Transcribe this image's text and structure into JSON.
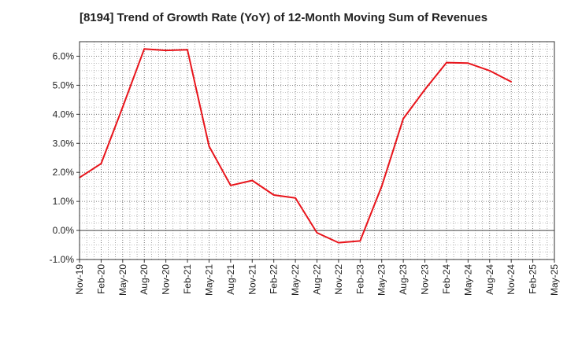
{
  "chart_data": {
    "type": "line",
    "title": "[8194]  Trend of Growth Rate (YoY) of 12-Month Moving Sum of Revenues",
    "xlabel": "",
    "ylabel": "",
    "ylim": [
      -1.0,
      6.5
    ],
    "y_ticks": [
      -1.0,
      0.0,
      1.0,
      2.0,
      3.0,
      4.0,
      5.0,
      6.0
    ],
    "y_tick_labels": [
      "-1.0%",
      "0.0%",
      "1.0%",
      "2.0%",
      "3.0%",
      "4.0%",
      "5.0%",
      "6.0%"
    ],
    "x_tick_labels": [
      "Nov-19",
      "Feb-20",
      "May-20",
      "Aug-20",
      "Nov-20",
      "Feb-21",
      "May-21",
      "Aug-21",
      "Nov-21",
      "Feb-22",
      "May-22",
      "Aug-22",
      "Nov-22",
      "Feb-23",
      "May-23",
      "Aug-23",
      "Nov-23",
      "Feb-24",
      "May-24",
      "Aug-24",
      "Nov-24",
      "Feb-25",
      "May-25"
    ],
    "grid": true,
    "series": [
      {
        "color": "#e8141b",
        "values": [
          1.82,
          2.3,
          4.25,
          6.25,
          6.2,
          6.22,
          2.9,
          1.55,
          1.72,
          1.22,
          1.12,
          -0.08,
          -0.42,
          -0.36,
          1.52,
          3.85,
          4.85,
          5.78,
          5.76,
          5.5,
          5.12,
          null,
          null
        ]
      }
    ]
  }
}
